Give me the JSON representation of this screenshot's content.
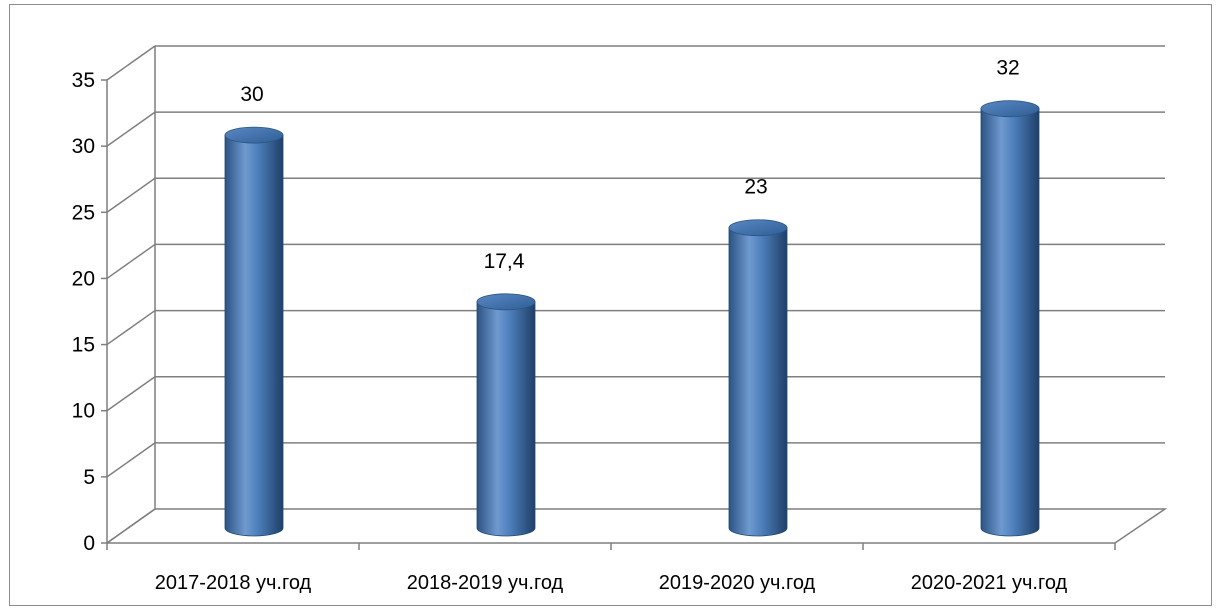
{
  "chart_data": {
    "type": "bar",
    "style": "3d-cylinder",
    "categories": [
      "2017-2018 уч.год",
      "2018-2019 уч.год",
      "2019-2020 уч.год",
      "2020-2021 уч.год"
    ],
    "values": [
      30,
      17.4,
      23,
      32
    ],
    "data_labels": [
      "30",
      "17,4",
      "23",
      "32"
    ],
    "y_ticks": [
      "0",
      "5",
      "10",
      "15",
      "20",
      "25",
      "30",
      "35"
    ],
    "ylim": [
      0,
      35
    ],
    "grid": true,
    "legend": "none",
    "colors": {
      "bar": "#4f81bd",
      "bar_dark": "#2b5383",
      "bar_light": "#8db3e2",
      "grid": "#7f7f7f"
    }
  }
}
